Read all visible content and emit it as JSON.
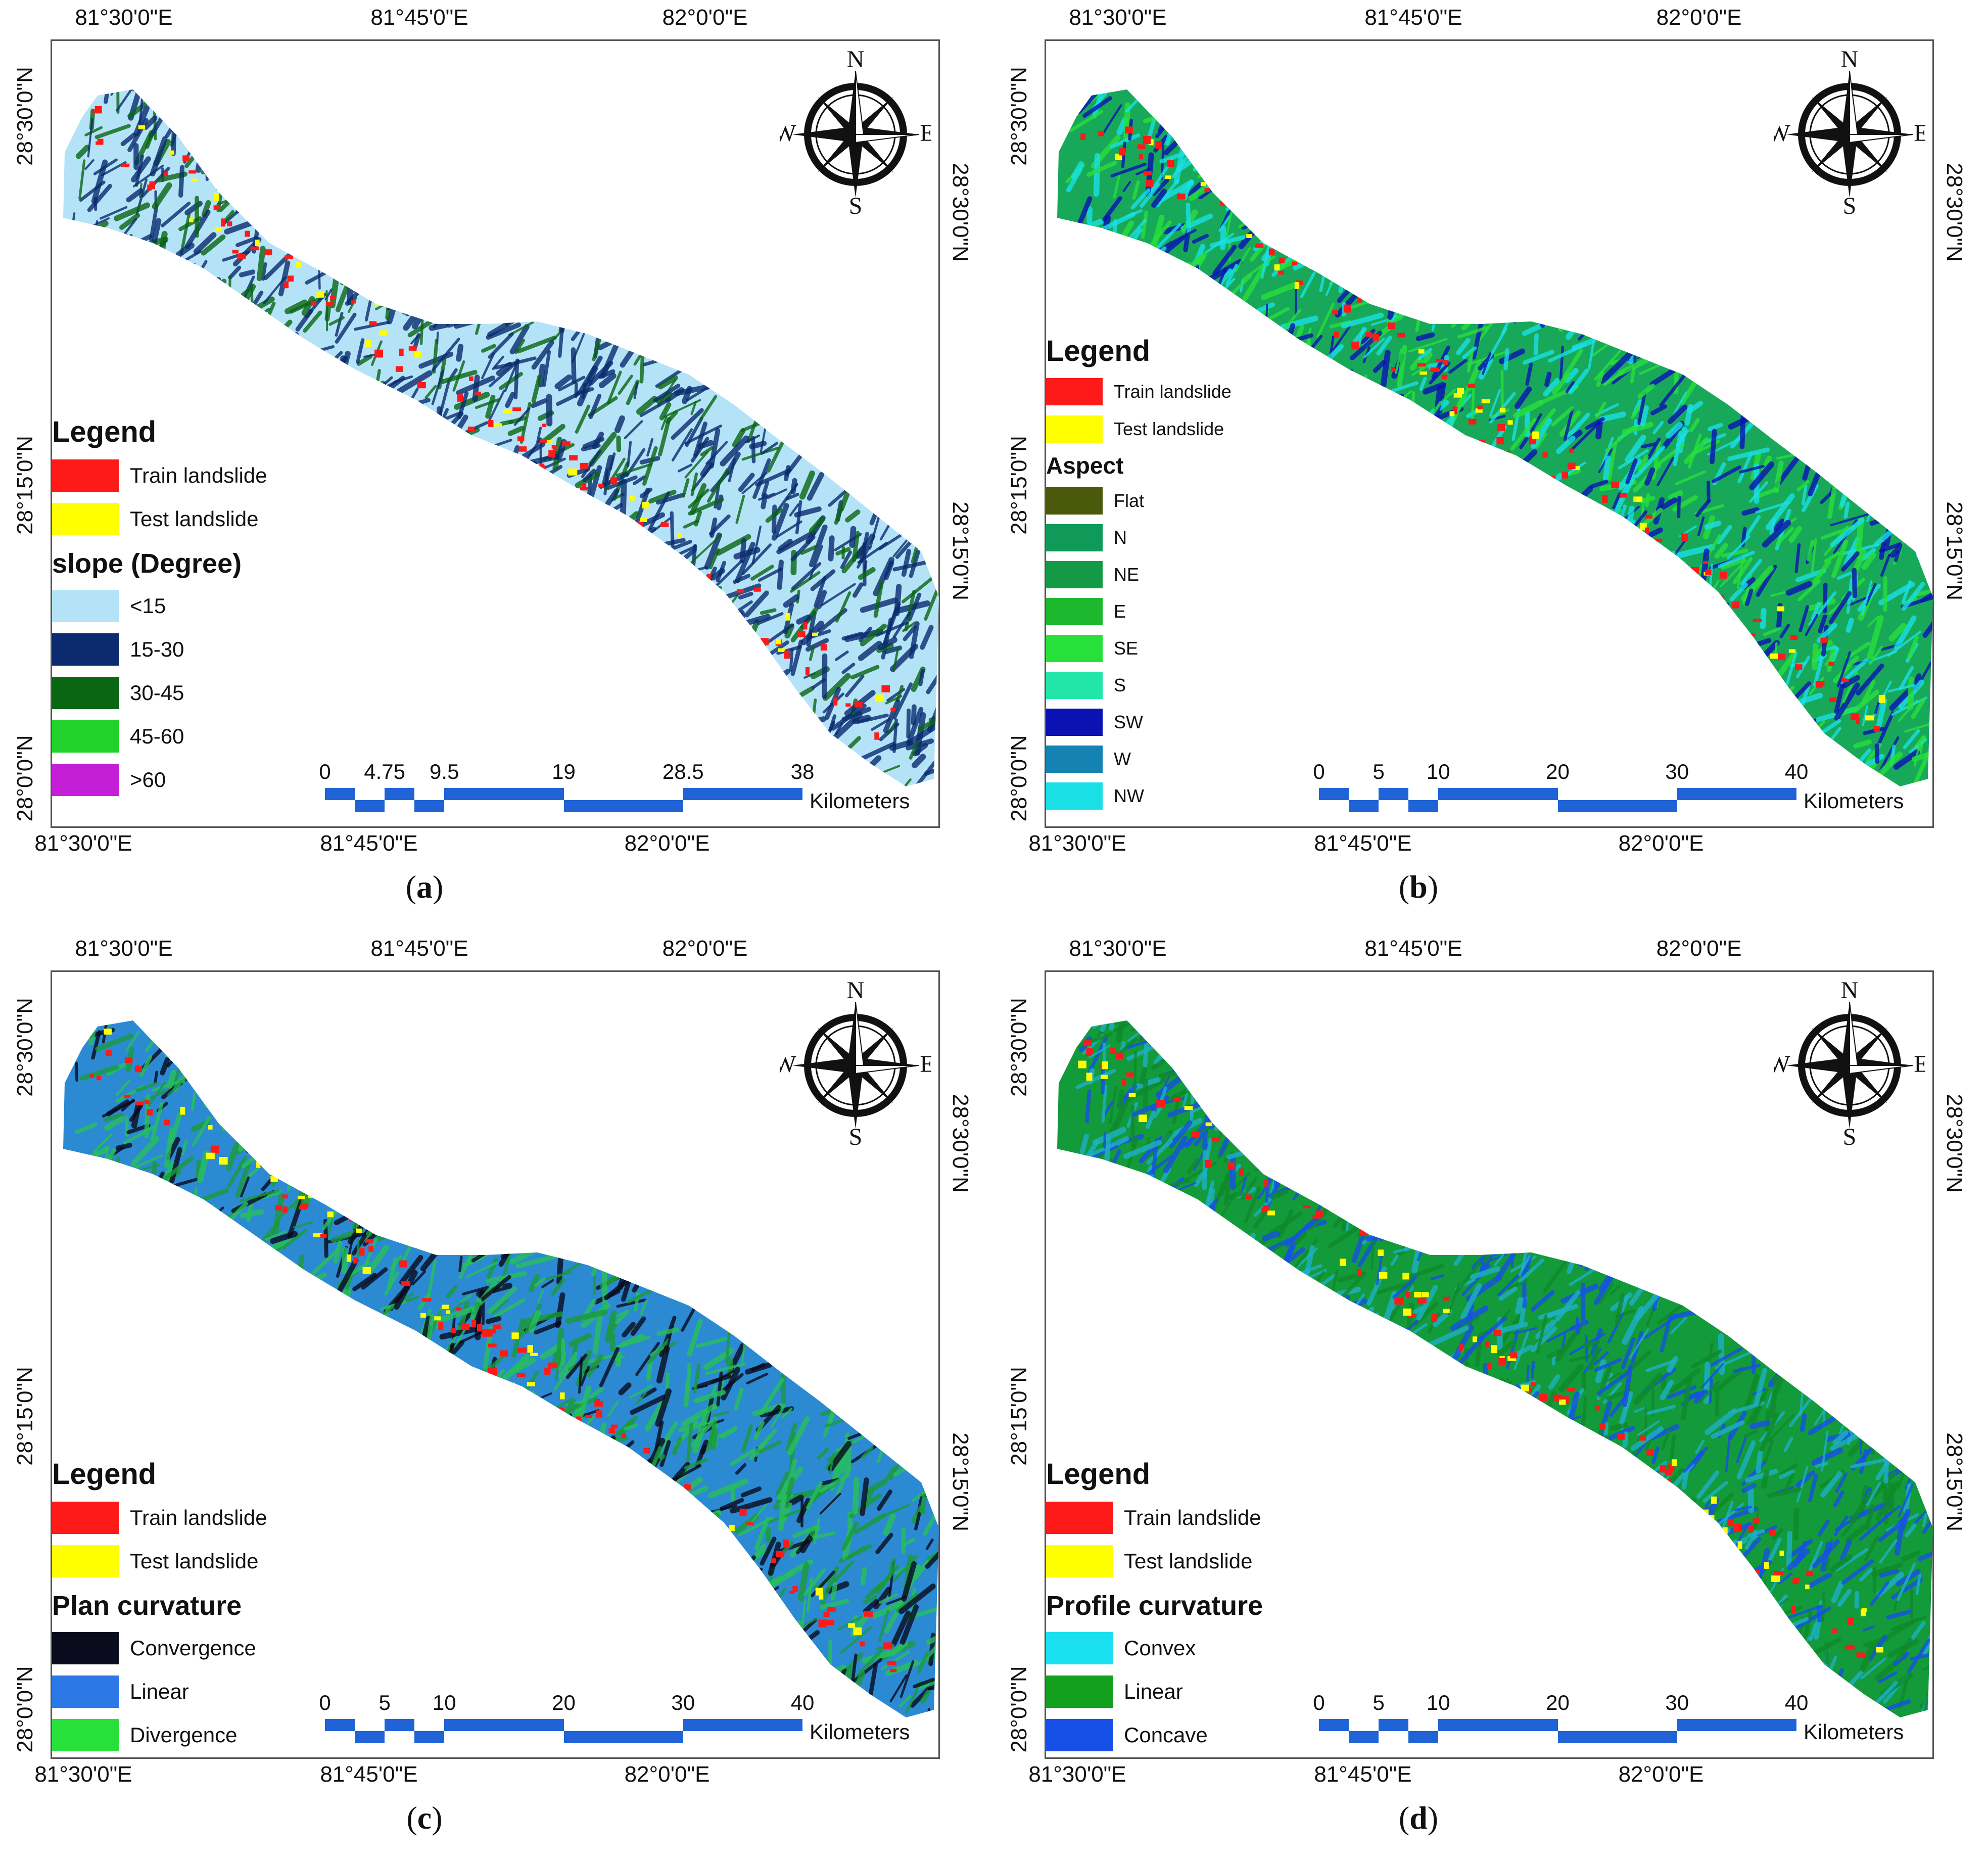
{
  "panels": [
    {
      "id": "a",
      "letter": "a",
      "top_coords": [
        "81°30'0\"E",
        "81°45'0\"E",
        "82°0'0\"E"
      ],
      "bottom_coords": [
        "81°30'0\"E",
        "81°45'0\"E",
        "82°0'0\"E"
      ],
      "left_coords": [
        "28°30'0\"N",
        "28°15'0\"N",
        "28°0'0\"N"
      ],
      "right_coords": [
        "28°30'0\"N",
        "28°15'0\"N"
      ],
      "compass": {
        "n": "N",
        "s": "S",
        "e": "E",
        "w": "W"
      },
      "legend_title": "Legend",
      "landslides": [
        {
          "label": "Train landslide",
          "color": "#ff1a1a"
        },
        {
          "label": "Test landslide",
          "color": "#ffff00"
        }
      ],
      "layer_title": "slope (Degree)",
      "classes": [
        {
          "label": "<15",
          "color": "#b4e3f7"
        },
        {
          "label": "15-30",
          "color": "#0b2b6e"
        },
        {
          "label": "30-45",
          "color": "#0a6612"
        },
        {
          "label": "45-60",
          "color": "#22d12a"
        },
        {
          "label": ">60",
          "color": "#c41ed6"
        }
      ],
      "scale_ticks": [
        "0",
        "4.75",
        "9.5",
        "19",
        "28.5",
        "38"
      ],
      "scale_unit": "Kilometers",
      "map_fill": "#b4e3f7",
      "map_texture": [
        "#0b2b6e",
        "#0a6612",
        "#0b2b6e"
      ]
    },
    {
      "id": "b",
      "letter": "b",
      "top_coords": [
        "81°30'0\"E",
        "81°45'0\"E",
        "82°0'0\"E"
      ],
      "bottom_coords": [
        "81°30'0\"E",
        "81°45'0\"E",
        "82°0'0\"E"
      ],
      "left_coords": [
        "28°30'0\"N",
        "28°15'0\"N",
        "28°0'0\"N"
      ],
      "right_coords": [
        "28°30'0\"N",
        "28°15'0\"N"
      ],
      "compass": {
        "n": "N",
        "s": "S",
        "e": "E",
        "w": "W"
      },
      "legend_title": "Legend",
      "landslides": [
        {
          "label": "Train landslide",
          "color": "#ff1a1a"
        },
        {
          "label": "Test landslide",
          "color": "#ffff00"
        }
      ],
      "layer_title": "Aspect",
      "classes": [
        {
          "label": "Flat",
          "color": "#4a5a0a"
        },
        {
          "label": "N",
          "color": "#0f9a5a"
        },
        {
          "label": "NE",
          "color": "#149a46"
        },
        {
          "label": "E",
          "color": "#1cb82e"
        },
        {
          "label": "SE",
          "color": "#27e03a"
        },
        {
          "label": "S",
          "color": "#22e6a8"
        },
        {
          "label": "SW",
          "color": "#0a12b4"
        },
        {
          "label": "W",
          "color": "#1582b4"
        },
        {
          "label": "NW",
          "color": "#1ae0e6"
        }
      ],
      "scale_ticks": [
        "0",
        "5",
        "10",
        "20",
        "30",
        "40"
      ],
      "scale_unit": "Kilometers",
      "map_fill": "#18a85a",
      "map_texture": [
        "#0a12b4",
        "#1ae0e6",
        "#27e03a"
      ]
    },
    {
      "id": "c",
      "letter": "c",
      "top_coords": [
        "81°30'0\"E",
        "81°45'0\"E",
        "82°0'0\"E"
      ],
      "bottom_coords": [
        "81°30'0\"E",
        "81°45'0\"E",
        "82°0'0\"E"
      ],
      "left_coords": [
        "28°30'0\"N",
        "28°15'0\"N",
        "28°0'0\"N"
      ],
      "right_coords": [
        "28°30'0\"N",
        "28°15'0\"N"
      ],
      "compass": {
        "n": "N",
        "s": "S",
        "e": "E",
        "w": "W"
      },
      "legend_title": "Legend",
      "landslides": [
        {
          "label": "Train landslide",
          "color": "#ff1a1a"
        },
        {
          "label": "Test landslide",
          "color": "#ffff00"
        }
      ],
      "layer_title": "Plan curvature",
      "classes": [
        {
          "label": "Convergence",
          "color": "#0b0b1e"
        },
        {
          "label": "Linear",
          "color": "#2b78e6"
        },
        {
          "label": "Divergence",
          "color": "#27e03a"
        }
      ],
      "scale_ticks": [
        "0",
        "5",
        "10",
        "20",
        "30",
        "40"
      ],
      "scale_unit": "Kilometers",
      "map_fill": "#2b8ad2",
      "map_texture": [
        "#1c9a3a",
        "#0b0b1e",
        "#27c05a"
      ]
    },
    {
      "id": "d",
      "letter": "d",
      "top_coords": [
        "81°30'0\"E",
        "81°45'0\"E",
        "82°0'0\"E"
      ],
      "bottom_coords": [
        "81°30'0\"E",
        "81°45'0\"E",
        "82°0'0\"E"
      ],
      "left_coords": [
        "28°30'0\"N",
        "28°15'0\"N",
        "28°0'0\"N"
      ],
      "right_coords": [
        "28°30'0\"N",
        "28°15'0\"N"
      ],
      "compass": {
        "n": "N",
        "s": "S",
        "e": "E",
        "w": "W"
      },
      "legend_title": "Legend",
      "landslides": [
        {
          "label": "Train landslide",
          "color": "#ff1a1a"
        },
        {
          "label": "Test landslide",
          "color": "#ffff00"
        }
      ],
      "layer_title": "Profile curvature",
      "classes": [
        {
          "label": "Convex",
          "color": "#1ae0f0"
        },
        {
          "label": "Linear",
          "color": "#13a01f"
        },
        {
          "label": "Concave",
          "color": "#1750e6"
        }
      ],
      "scale_ticks": [
        "0",
        "5",
        "10",
        "20",
        "30",
        "40"
      ],
      "scale_unit": "Kilometers",
      "map_fill": "#139a3a",
      "map_texture": [
        "#1fb0c8",
        "#1750e6",
        "#0f8a2a"
      ]
    }
  ]
}
